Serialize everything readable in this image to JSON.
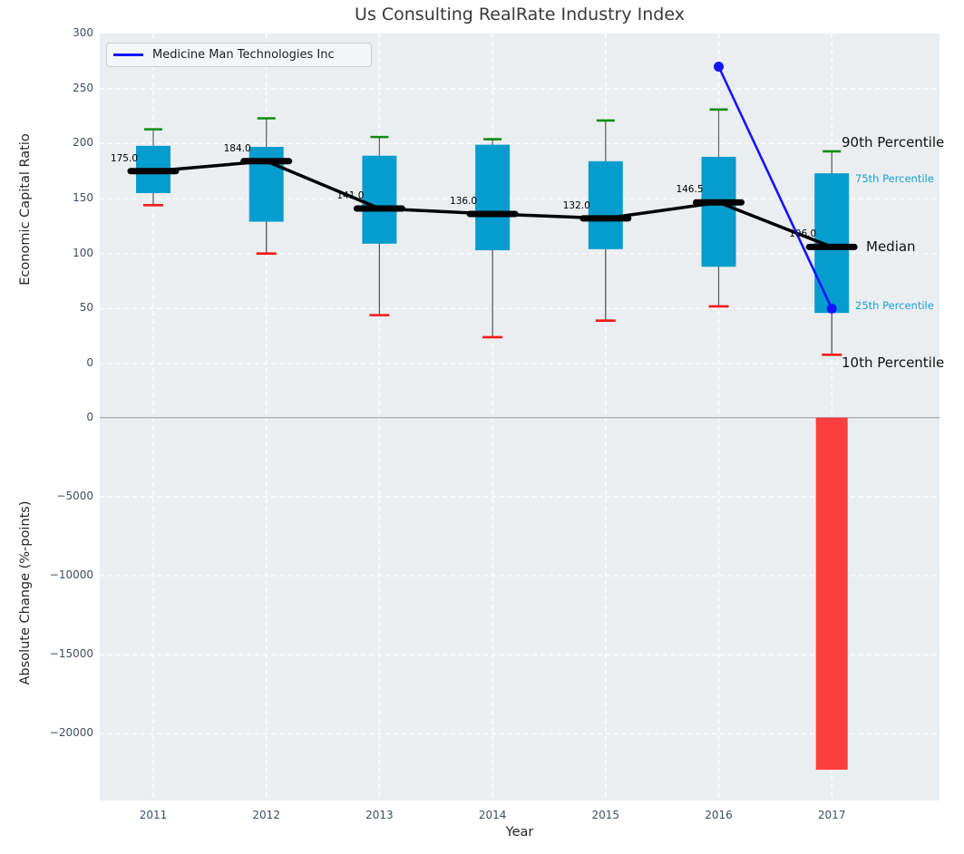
{
  "title": "Us Consulting RealRate Industry Index",
  "legend": {
    "label": "Medicine Man Technologies Inc"
  },
  "xlabel": "Year",
  "top_axis": {
    "ylabel": "Economic Capital Ratio",
    "yticks": [
      300,
      250,
      200,
      150,
      100,
      50,
      0
    ]
  },
  "bottom_axis": {
    "ylabel": "Absolute Change (%-points)",
    "yticks": [
      0,
      -5000,
      -10000,
      -15000,
      -20000
    ]
  },
  "right_labels": [
    {
      "text": "90th Percentile",
      "size": "large",
      "anchor": "p90",
      "dy": -10
    },
    {
      "text": "75th Percentile",
      "size": "small",
      "anchor": "p75",
      "dy": 6
    },
    {
      "text": "Median",
      "size": "large",
      "anchor": "median",
      "dy": 0
    },
    {
      "text": "25th Percentile",
      "size": "small",
      "anchor": "p25",
      "dy": -8
    },
    {
      "text": "10th Percentile",
      "size": "large",
      "anchor": "p10",
      "dy": 9
    }
  ],
  "colors": {
    "box": "#069dce",
    "bar_negative": "#fb3e3e",
    "p90_cap": "#0e8b0e",
    "p10_cap": "#f51919",
    "median": "#000000",
    "overlay_line": "#1414ff",
    "accent_label": "#1a9fd4",
    "plot_bg": "#ebeef1",
    "grid": "#ffffff",
    "whisker": "#666666",
    "zero_line": "#b0b0b0"
  },
  "chart_data": [
    {
      "type": "boxplot",
      "title": "Us Consulting RealRate Industry Index",
      "xlabel": "Year",
      "ylabel": "Economic Capital Ratio",
      "ylim": [
        -20,
        300
      ],
      "grid": true,
      "categories": [
        "2011",
        "2012",
        "2013",
        "2014",
        "2015",
        "2016",
        "2017"
      ],
      "percentiles": {
        "p10": [
          144,
          100,
          44,
          24,
          39,
          52,
          8
        ],
        "p25": [
          155,
          129,
          109,
          103,
          104,
          88,
          46
        ],
        "median": [
          175.0,
          184.0,
          141.0,
          136.0,
          132.0,
          146.5,
          106.0
        ],
        "p75": [
          198,
          197,
          189,
          199,
          184,
          188,
          173
        ],
        "p90": [
          213,
          223,
          206,
          204,
          221,
          231,
          193
        ]
      },
      "median_labels": [
        "175.0",
        "184.0",
        "141.0",
        "136.0",
        "132.0",
        "146.5",
        "106.0"
      ],
      "overlay_line": {
        "name": "Medicine Man Technologies Inc",
        "x": [
          "2016",
          "2017"
        ],
        "values": [
          270,
          50
        ]
      },
      "legend_position": "upper left"
    },
    {
      "type": "bar",
      "ylabel": "Absolute Change (%-points)",
      "ylim": [
        -24200,
        2000
      ],
      "grid": true,
      "categories": [
        "2011",
        "2012",
        "2013",
        "2014",
        "2015",
        "2016",
        "2017"
      ],
      "values": [
        null,
        null,
        null,
        null,
        null,
        null,
        -22280
      ]
    }
  ]
}
